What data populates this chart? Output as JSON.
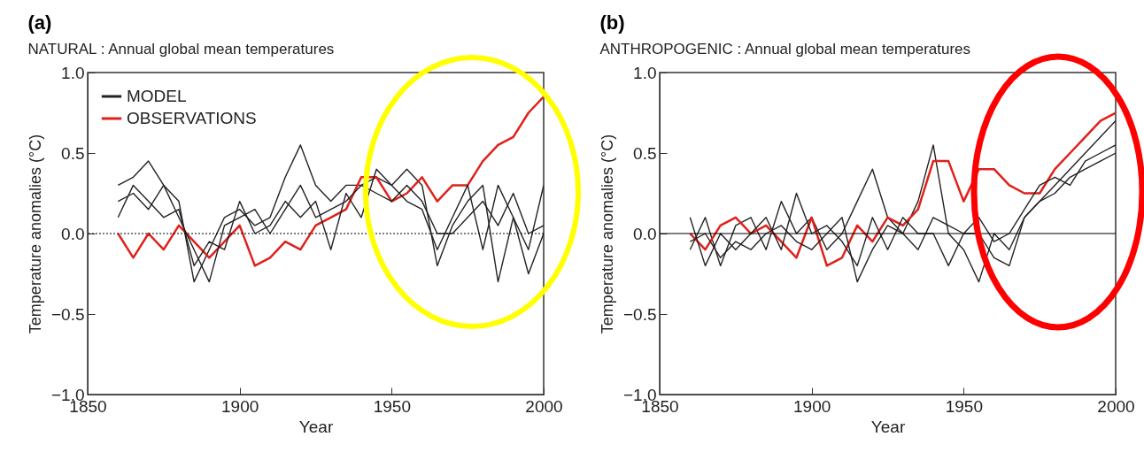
{
  "chart_data": [
    {
      "type": "line",
      "title": "NATURAL : Annual global mean temperatures",
      "annotations": [
        "(a)"
      ],
      "xlabel": "Year",
      "ylabel": "Temperature anomalies (°C)",
      "x": [
        1860,
        1865,
        1870,
        1875,
        1880,
        1885,
        1890,
        1895,
        1900,
        1905,
        1910,
        1915,
        1920,
        1925,
        1930,
        1935,
        1940,
        1945,
        1950,
        1955,
        1960,
        1965,
        1970,
        1975,
        1980,
        1985,
        1990,
        1995,
        2000
      ],
      "series": [
        {
          "name": "MODEL",
          "color": "#222222",
          "values": [
            0.3,
            0.35,
            0.45,
            0.3,
            0.2,
            -0.3,
            -0.1,
            0.1,
            0.15,
            0.05,
            0.1,
            0.35,
            0.55,
            0.3,
            0.2,
            0.3,
            0.3,
            0.35,
            0.3,
            0.4,
            0.3,
            -0.2,
            0.05,
            0.2,
            0.3,
            -0.3,
            0.1,
            -0.1,
            0.3
          ]
        },
        {
          "name": "OBSERVATIONS",
          "color": "#e0201b",
          "values": [
            0.0,
            -0.15,
            0.0,
            -0.1,
            0.05,
            -0.05,
            -0.15,
            -0.05,
            0.05,
            -0.2,
            -0.15,
            -0.05,
            -0.1,
            0.05,
            0.1,
            0.15,
            0.35,
            0.35,
            0.2,
            0.25,
            0.35,
            0.2,
            0.3,
            0.3,
            0.45,
            0.55,
            0.6,
            0.75,
            0.85
          ]
        },
        {
          "color": "#222222",
          "values": [
            0.2,
            0.25,
            0.15,
            0.3,
            0.1,
            -0.1,
            -0.3,
            0.05,
            0.1,
            0.15,
            0.0,
            0.15,
            0.3,
            0.1,
            0.15,
            0.2,
            0.3,
            0.25,
            0.2,
            0.3,
            0.2,
            0.0,
            0.0,
            0.1,
            0.2,
            0.05,
            0.25,
            0.0,
            0.05
          ]
        },
        {
          "color": "#222222",
          "values": [
            0.1,
            0.3,
            0.2,
            0.1,
            0.15,
            -0.2,
            -0.05,
            -0.1,
            0.2,
            0.0,
            0.05,
            0.2,
            0.1,
            0.2,
            -0.1,
            0.25,
            0.1,
            0.4,
            0.3,
            0.2,
            0.15,
            -0.1,
            0.1,
            0.3,
            -0.1,
            0.3,
            0.1,
            -0.25,
            0.0
          ]
        }
      ],
      "xlim": [
        1850,
        2000
      ],
      "xticks": [
        {
          "value": 1850,
          "label": "1850"
        },
        {
          "value": 1900,
          "label": "1900"
        },
        {
          "value": 1950,
          "label": "1950"
        },
        {
          "value": 2000,
          "label": "2000"
        }
      ],
      "ylim": [
        -1,
        1
      ],
      "yticks": [
        {
          "value": -1,
          "label": "−1.0"
        },
        {
          "value": -0.5,
          "label": "−0.5"
        },
        {
          "value": 0,
          "label": "0.0"
        },
        0.5,
        {
          "value": 1,
          "label": "1.0"
        }
      ],
      "ref_lines": [
        {
          "axis": "y",
          "value": 0,
          "color": "#000000",
          "line_style": "dotted"
        }
      ],
      "legend": "top left",
      "grid": false,
      "line_style": "solid"
    },
    {
      "type": "line",
      "title": "ANTHROPOGENIC : Annual global mean temperatures",
      "annotations": [
        "(b)"
      ],
      "xlabel": "Year",
      "ylabel": "Temperature anomalies (°C)",
      "x": [
        1860,
        1865,
        1870,
        1875,
        1880,
        1885,
        1890,
        1895,
        1900,
        1905,
        1910,
        1915,
        1920,
        1925,
        1930,
        1935,
        1940,
        1945,
        1950,
        1955,
        1960,
        1965,
        1970,
        1975,
        1980,
        1985,
        1990,
        1995,
        2000
      ],
      "series": [
        {
          "name": "MODEL",
          "color": "#222222",
          "values": [
            -0.1,
            0.1,
            -0.2,
            0.05,
            0.1,
            -0.1,
            0.2,
            0.0,
            0.1,
            -0.1,
            0.0,
            0.2,
            0.4,
            0.1,
            0.0,
            0.2,
            0.55,
            0.0,
            -0.1,
            -0.3,
            0.0,
            -0.1,
            0.1,
            0.2,
            0.3,
            0.4,
            0.5,
            0.6,
            0.7
          ]
        },
        {
          "name": "OBSERVATIONS",
          "color": "#e0201b",
          "values": [
            0.0,
            -0.1,
            0.05,
            0.1,
            0.0,
            0.05,
            -0.05,
            -0.15,
            0.1,
            -0.2,
            -0.15,
            0.05,
            -0.05,
            0.1,
            0.05,
            0.15,
            0.45,
            0.45,
            0.2,
            0.4,
            0.4,
            0.3,
            0.25,
            0.25,
            0.4,
            0.5,
            0.6,
            0.7,
            0.75
          ]
        },
        {
          "color": "#222222",
          "values": [
            0.1,
            -0.2,
            0.0,
            -0.1,
            0.0,
            0.1,
            -0.1,
            0.25,
            0.0,
            0.05,
            -0.05,
            -0.2,
            0.1,
            -0.1,
            0.1,
            0.0,
            0.0,
            -0.2,
            0.0,
            0.1,
            -0.05,
            0.0,
            0.15,
            0.3,
            0.35,
            0.3,
            0.45,
            0.5,
            0.55
          ]
        },
        {
          "color": "#222222",
          "values": [
            -0.05,
            0.0,
            -0.15,
            -0.05,
            -0.1,
            0.0,
            0.05,
            -0.05,
            -0.1,
            0.0,
            0.1,
            -0.3,
            -0.1,
            0.05,
            0.0,
            -0.1,
            0.1,
            0.05,
            0.0,
            0.0,
            -0.15,
            -0.2,
            0.1,
            0.2,
            0.25,
            0.35,
            0.4,
            0.45,
            0.5
          ]
        }
      ],
      "xlim": [
        1850,
        2000
      ],
      "xticks": [
        {
          "value": 1850,
          "label": "1850"
        },
        {
          "value": 1900,
          "label": "1900"
        },
        {
          "value": 1950,
          "label": "1950"
        },
        {
          "value": 2000,
          "label": "2000"
        }
      ],
      "ylim": [
        -1,
        1
      ],
      "yticks": [
        {
          "value": -1,
          "label": "−1.0"
        },
        {
          "value": -0.5,
          "label": "−0.5"
        },
        {
          "value": 0,
          "label": "0.0"
        },
        0.5,
        {
          "value": 1,
          "label": "1.0"
        }
      ],
      "ref_lines": [
        {
          "axis": "y",
          "value": 0,
          "color": "#000000",
          "line_style": "solid"
        }
      ],
      "legend": "top left",
      "grid": false,
      "line_style": "solid"
    }
  ]
}
